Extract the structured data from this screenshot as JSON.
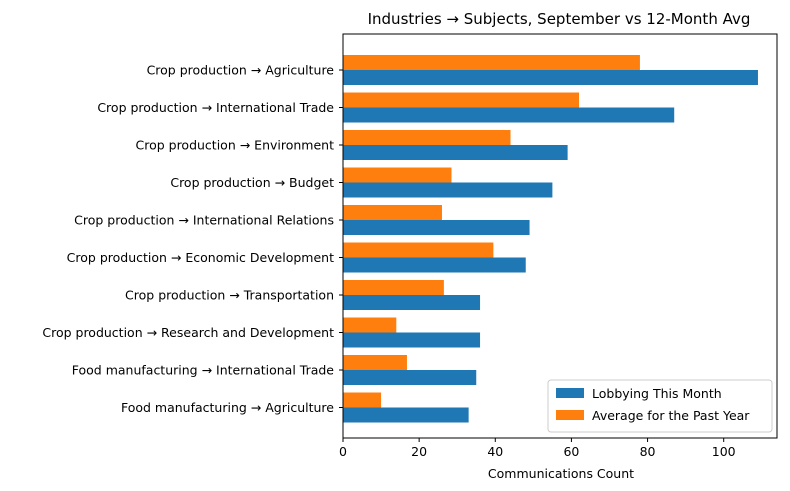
{
  "chart_data": {
    "type": "bar",
    "orientation": "horizontal",
    "title": "Industries → Subjects, September vs 12-Month Avg",
    "xlabel": "Communications Count",
    "ylabel": "",
    "xlim": [
      0,
      114
    ],
    "xticks": [
      0,
      20,
      40,
      60,
      80,
      100
    ],
    "grid": false,
    "legend_position": "lower-right",
    "categories": [
      "Crop production → Agriculture",
      "Crop production → International Trade",
      "Crop production → Environment",
      "Crop production → Budget",
      "Crop production → International Relations",
      "Crop production → Economic Development",
      "Crop production → Transportation",
      "Crop production → Research and Development",
      "Food manufacturing → International Trade",
      "Food manufacturing → Agriculture"
    ],
    "series": [
      {
        "name": "Lobbying This Month",
        "color": "#1f77b4",
        "values": [
          109,
          87,
          59,
          55,
          49,
          48,
          36,
          36,
          35,
          33
        ]
      },
      {
        "name": "Average for the Past Year",
        "color": "#ff7f0e",
        "values": [
          78,
          62,
          44,
          28.5,
          26,
          39.5,
          26.5,
          14,
          16.8,
          10
        ]
      }
    ]
  }
}
